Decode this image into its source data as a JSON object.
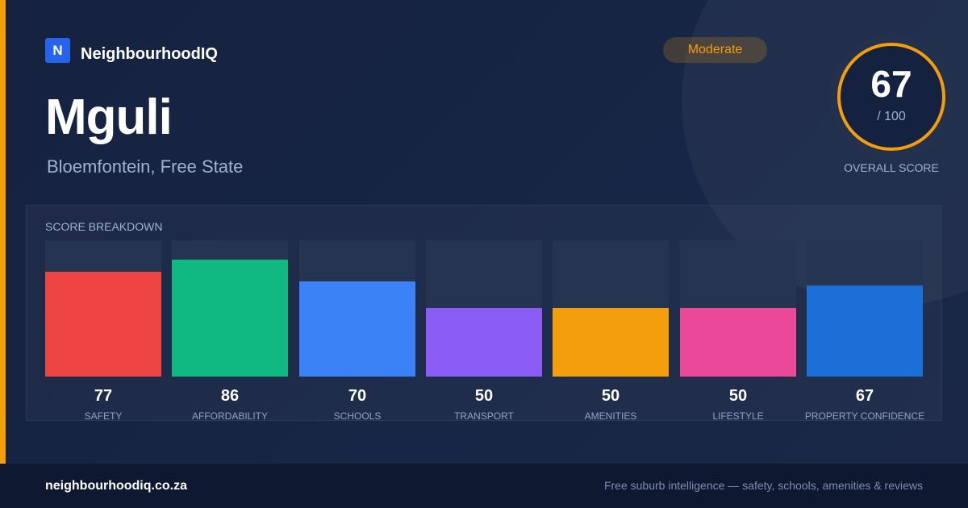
{
  "brand": {
    "logo_letter": "N",
    "name": "NeighbourhoodIQ"
  },
  "suburb": {
    "name": "Mguli",
    "location": "Bloemfontein, Free State"
  },
  "badge": {
    "label": "Moderate",
    "color": "#f59e0b"
  },
  "overall_score": {
    "value": "67",
    "out_of": "/ 100",
    "caption": "OVERALL SCORE",
    "ring_color": "#f59e0b"
  },
  "breakdown": {
    "title": "SCORE BREAKDOWN",
    "max": 100,
    "items": [
      {
        "label": "SAFETY",
        "value": 77,
        "color": "#ef4444"
      },
      {
        "label": "AFFORDABILITY",
        "value": 86,
        "color": "#10b981"
      },
      {
        "label": "SCHOOLS",
        "value": 70,
        "color": "#3b82f6"
      },
      {
        "label": "TRANSPORT",
        "value": 50,
        "color": "#8b5cf6"
      },
      {
        "label": "AMENITIES",
        "value": 50,
        "color": "#f59e0b"
      },
      {
        "label": "LIFESTYLE",
        "value": 50,
        "color": "#ec4899"
      },
      {
        "label": "PROPERTY CONFIDENCE",
        "value": 67,
        "color": "#1d6fd8"
      }
    ]
  },
  "footer": {
    "url": "neighbourhoodiq.co.za",
    "tagline": "Free suburb intelligence — safety, schools, amenities & reviews"
  }
}
